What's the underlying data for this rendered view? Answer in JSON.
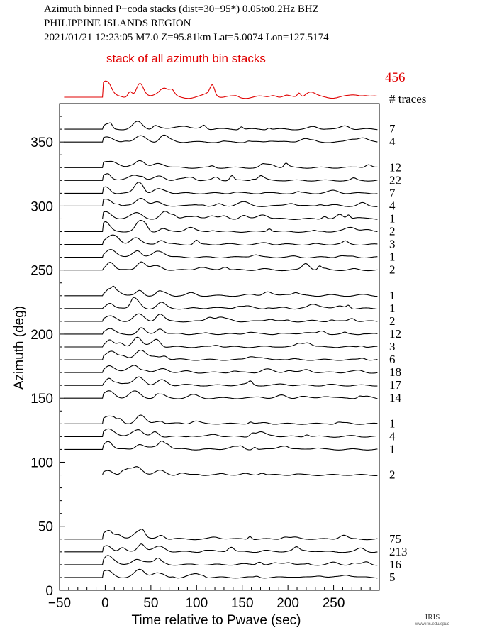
{
  "header": {
    "line1": "Azimuth binned P−coda stacks (dist=30−95*)  0.05to0.2Hz  BHZ",
    "line2": "PHILIPPINE ISLANDS REGION",
    "line3": "2021/01/21   12:23:05   M7.0   Z=95.81km  Lat=5.0074  Lon=127.5174"
  },
  "stack": {
    "label": "stack of all azimuth bin stacks",
    "count": "456",
    "color": "#e00000"
  },
  "count_header": "# traces",
  "logo": {
    "text": "IRIS",
    "sub": "www.iris.edu/spud"
  },
  "chart_data": {
    "type": "line",
    "xlabel": "Time relative to Pwave (sec)",
    "ylabel": "Azimuth (deg)",
    "xlim": [
      -50,
      300
    ],
    "ylim": [
      0,
      380
    ],
    "xticks": [
      -50,
      0,
      50,
      100,
      150,
      200,
      250
    ],
    "yticks": [
      0,
      50,
      100,
      150,
      200,
      250,
      300,
      350
    ],
    "xtick_labels": [
      "−50",
      "0",
      "50",
      "100",
      "150",
      "200",
      "250"
    ],
    "ytick_labels": [
      "0",
      "50",
      "100",
      "150",
      "200",
      "250",
      "300",
      "350"
    ],
    "trace_color": "#000000",
    "traces": [
      {
        "azimuth": 360,
        "count": "7"
      },
      {
        "azimuth": 350,
        "count": "4"
      },
      {
        "azimuth": 330,
        "count": "12"
      },
      {
        "azimuth": 320,
        "count": "22"
      },
      {
        "azimuth": 310,
        "count": "7"
      },
      {
        "azimuth": 300,
        "count": "4"
      },
      {
        "azimuth": 290,
        "count": "1"
      },
      {
        "azimuth": 280,
        "count": "2"
      },
      {
        "azimuth": 270,
        "count": "3"
      },
      {
        "azimuth": 260,
        "count": "1"
      },
      {
        "azimuth": 250,
        "count": "2"
      },
      {
        "azimuth": 230,
        "count": "1"
      },
      {
        "azimuth": 220,
        "count": "1"
      },
      {
        "azimuth": 210,
        "count": "2"
      },
      {
        "azimuth": 200,
        "count": "12"
      },
      {
        "azimuth": 190,
        "count": "3"
      },
      {
        "azimuth": 180,
        "count": "6"
      },
      {
        "azimuth": 170,
        "count": "18"
      },
      {
        "azimuth": 160,
        "count": "17"
      },
      {
        "azimuth": 150,
        "count": "14"
      },
      {
        "azimuth": 130,
        "count": "1"
      },
      {
        "azimuth": 120,
        "count": "4"
      },
      {
        "azimuth": 110,
        "count": "1"
      },
      {
        "azimuth": 90,
        "count": "2"
      },
      {
        "azimuth": 40,
        "count": "75"
      },
      {
        "azimuth": 30,
        "count": "213"
      },
      {
        "azimuth": 20,
        "count": "16"
      },
      {
        "azimuth": 10,
        "count": "5"
      }
    ]
  }
}
